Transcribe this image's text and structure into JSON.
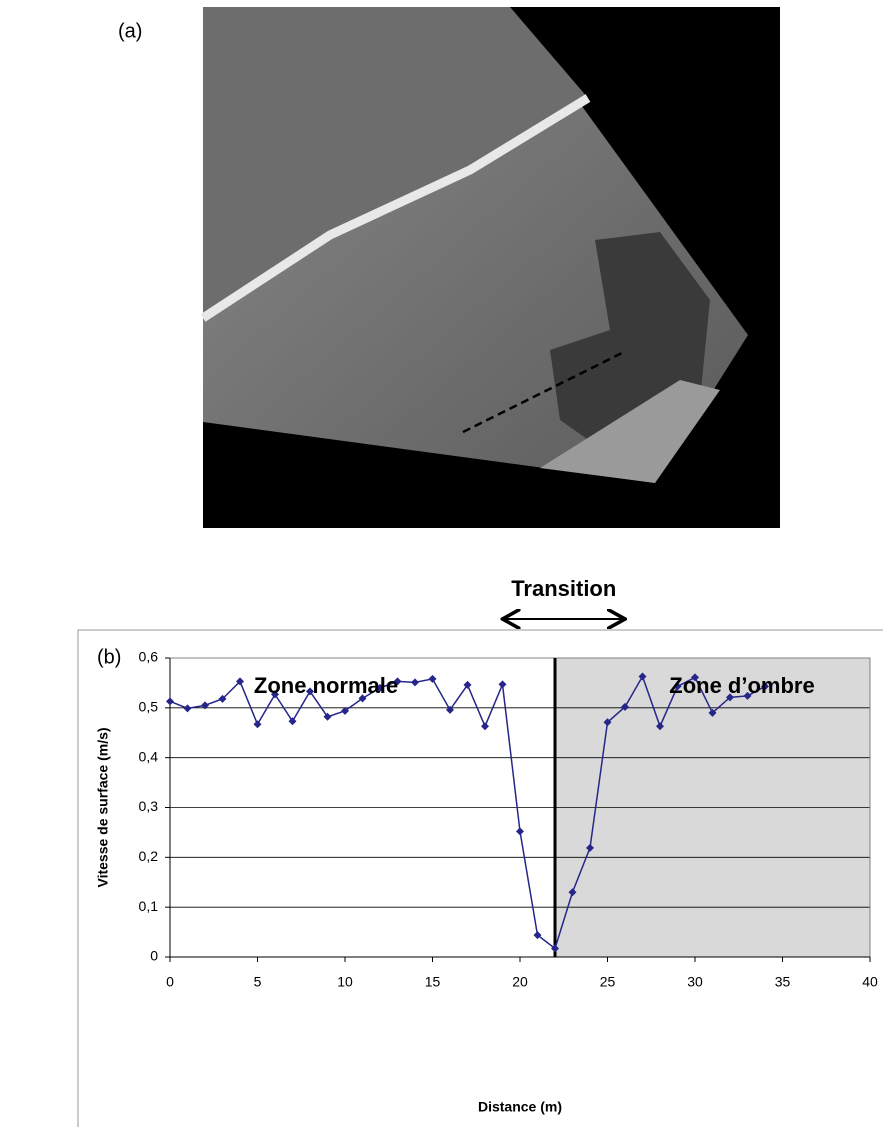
{
  "chart_data": {
    "type": "line",
    "panel_a_label": "(a)",
    "panel_b_label": "(b)",
    "x_label": "Distance (m)",
    "y_label": "Vitesse de surface (m/s)",
    "x": [
      0,
      1,
      2,
      3,
      4,
      5,
      6,
      7,
      8,
      9,
      10,
      11,
      12,
      13,
      14,
      15,
      16,
      17,
      18,
      19,
      20,
      21,
      22,
      23,
      24,
      25,
      26,
      27,
      28,
      29,
      30,
      31,
      32,
      33,
      34
    ],
    "series": [
      {
        "name": "Vitesse",
        "color": "#26268a",
        "values": [
          0.513,
          0.499,
          0.505,
          0.518,
          0.553,
          0.467,
          0.527,
          0.473,
          0.533,
          0.482,
          0.494,
          0.519,
          0.54,
          0.553,
          0.551,
          0.558,
          0.496,
          0.546,
          0.463,
          0.547,
          0.252,
          0.044,
          0.017,
          0.13,
          0.219,
          0.471,
          0.502,
          0.563,
          0.463,
          0.543,
          0.561,
          0.49,
          0.521,
          0.524,
          0.543
        ]
      }
    ],
    "xlim": [
      0,
      40
    ],
    "xticks": [
      0,
      5,
      10,
      15,
      20,
      25,
      30,
      35,
      40
    ],
    "ylim": [
      0,
      0.6
    ],
    "yticks": [
      0,
      {
        "value": 0.1,
        "label": "0,1"
      },
      {
        "value": 0.2,
        "label": "0,2"
      },
      {
        "value": 0.3,
        "label": "0,3"
      },
      {
        "value": 0.4,
        "label": "0,4"
      },
      {
        "value": 0.5,
        "label": "0,5"
      },
      {
        "value": 0.6,
        "label": "0,6"
      }
    ],
    "grid": true,
    "shaded_region": [
      22,
      40
    ],
    "shade_color": "#d9d9d9",
    "zone_left_label": "Zone normale",
    "zone_right_label": "Zone d’ombre",
    "transition": {
      "label": "Transition",
      "range": [
        19,
        26
      ]
    }
  }
}
